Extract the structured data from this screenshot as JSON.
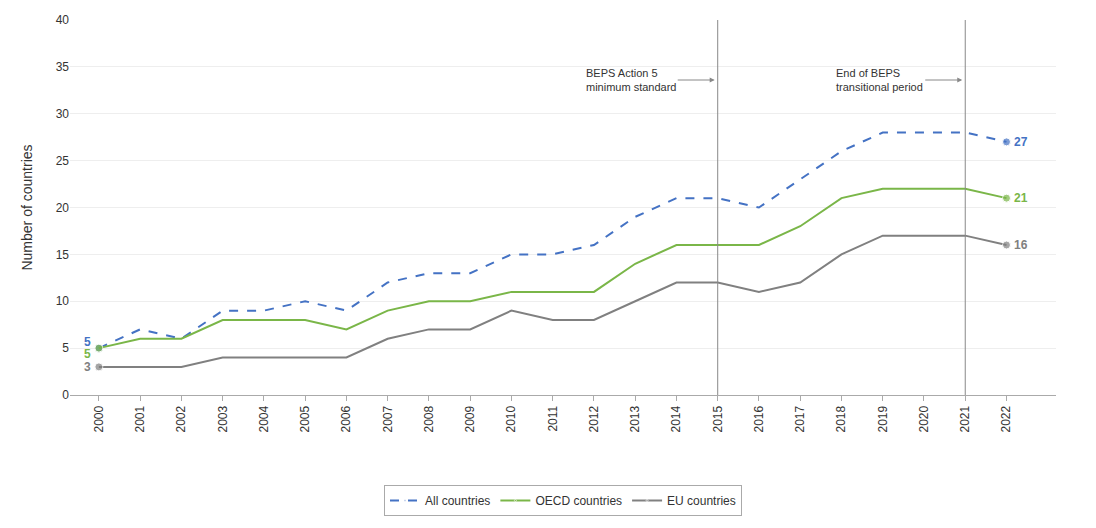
{
  "chart_data": {
    "type": "line",
    "ylabel": "Number of countries",
    "x": [
      2000,
      2001,
      2002,
      2003,
      2004,
      2005,
      2006,
      2007,
      2008,
      2009,
      2010,
      2011,
      2012,
      2013,
      2014,
      2015,
      2016,
      2017,
      2018,
      2019,
      2020,
      2021,
      2022
    ],
    "xlim": [
      1999.3,
      2023.2
    ],
    "xticks": [
      2000,
      2001,
      2002,
      2003,
      2004,
      2005,
      2006,
      2007,
      2008,
      2009,
      2010,
      2011,
      2012,
      2013,
      2014,
      2015,
      2016,
      2017,
      2018,
      2019,
      2020,
      2021,
      2022
    ],
    "ylim": [
      0,
      40
    ],
    "yticks": [
      0,
      5,
      10,
      15,
      20,
      25,
      30,
      35,
      40
    ],
    "grid": "y",
    "legend": "bottom",
    "marker": "circle",
    "series": [
      {
        "name": "All countries",
        "color": "#4472c4",
        "line_style": "dashed",
        "values": [
          5,
          7,
          6,
          9,
          9,
          10,
          9,
          12,
          13,
          13,
          15,
          15,
          16,
          19,
          21,
          21,
          20,
          23,
          26,
          28,
          28,
          28,
          27
        ],
        "value_labels": [
          "5",
          null,
          null,
          null,
          null,
          null,
          null,
          null,
          null,
          null,
          null,
          null,
          null,
          null,
          null,
          null,
          null,
          null,
          null,
          null,
          null,
          null,
          "27"
        ]
      },
      {
        "name": "OECD countries",
        "color": "#7ab648",
        "line_style": "solid",
        "values": [
          5,
          6,
          6,
          8,
          8,
          8,
          7,
          9,
          10,
          10,
          11,
          11,
          11,
          14,
          16,
          16,
          16,
          18,
          21,
          22,
          22,
          22,
          21
        ],
        "value_labels": [
          "5",
          null,
          null,
          null,
          null,
          null,
          null,
          null,
          null,
          null,
          null,
          null,
          null,
          null,
          null,
          null,
          null,
          null,
          null,
          null,
          null,
          null,
          "21"
        ]
      },
      {
        "name": "EU countries",
        "color": "#808080",
        "line_style": "solid",
        "values": [
          3,
          3,
          3,
          4,
          4,
          4,
          4,
          6,
          7,
          7,
          9,
          8,
          8,
          10,
          12,
          12,
          11,
          12,
          15,
          17,
          17,
          17,
          16
        ],
        "value_labels": [
          "3",
          null,
          null,
          null,
          null,
          null,
          null,
          null,
          null,
          null,
          null,
          null,
          null,
          null,
          null,
          null,
          null,
          null,
          null,
          null,
          null,
          null,
          "16"
        ]
      }
    ],
    "annotations": [
      {
        "text": "BEPS Action 5\nminimum standard",
        "x": 2015
      },
      {
        "text": "End of BEPS\ntransitional period",
        "x": 2021
      }
    ]
  }
}
